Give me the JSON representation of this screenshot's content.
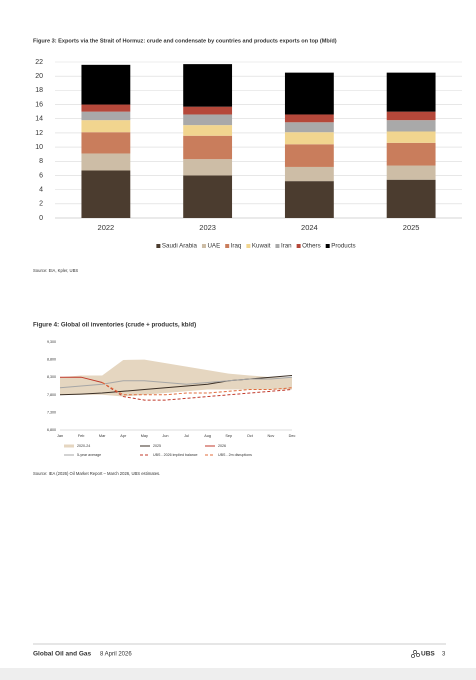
{
  "chart_data": [
    {
      "type": "bar",
      "title": "Figure 3: Exports via the Strait of Hormuz: crude and condensate by countries and products exports on top (Mb/d)",
      "categories": [
        "2022",
        "2023",
        "2024",
        "2025"
      ],
      "series": [
        {
          "name": "Saudi Arabia",
          "color": "#4b3c2f",
          "values": [
            6.7,
            6.0,
            5.2,
            5.4
          ]
        },
        {
          "name": "UAE",
          "color": "#cdbda6",
          "values": [
            2.4,
            2.3,
            2.0,
            2.0
          ]
        },
        {
          "name": "Iraq",
          "color": "#c97d5c",
          "values": [
            3.0,
            3.3,
            3.2,
            3.2
          ]
        },
        {
          "name": "Kuwait",
          "color": "#f1d58f",
          "values": [
            1.7,
            1.5,
            1.7,
            1.6
          ]
        },
        {
          "name": "Iran",
          "color": "#a9a9a9",
          "values": [
            1.2,
            1.5,
            1.4,
            1.6
          ]
        },
        {
          "name": "Others",
          "color": "#b5483a",
          "values": [
            1.0,
            1.1,
            1.1,
            1.2
          ]
        },
        {
          "name": "Products",
          "color": "#000000",
          "values": [
            5.6,
            6.0,
            5.9,
            5.5
          ]
        }
      ],
      "stacked": true,
      "ylim": [
        0,
        22
      ],
      "yticks": [
        0,
        2,
        4,
        6,
        8,
        10,
        12,
        14,
        16,
        18,
        20,
        22
      ],
      "grid": true,
      "legend": "bottom",
      "source": "Source: EIA, Kpler, UBS"
    },
    {
      "type": "line",
      "title": "Figure 4: Global oil inventories (crude + products, kb/d)",
      "categories": [
        "Jan",
        "Feb",
        "Mar",
        "Apr",
        "May",
        "Jun",
        "Jul",
        "Aug",
        "Sep",
        "Oct",
        "Nov",
        "Dec"
      ],
      "series": [
        {
          "name": "2020-24",
          "color": "#e5d6c0",
          "area": true,
          "low": [
            7800,
            7800,
            7800,
            7750,
            7800,
            7850,
            7900,
            7950,
            7950,
            7950,
            7950,
            7950
          ],
          "values": [
            8300,
            8350,
            8350,
            8790,
            8800,
            8700,
            8600,
            8500,
            8400,
            8350,
            8300,
            8300
          ]
        },
        {
          "name": "2025",
          "color": "#3b2f25",
          "values": [
            7800,
            7820,
            7850,
            7900,
            7950,
            8000,
            8050,
            8100,
            8200,
            8250,
            8300,
            8350
          ]
        },
        {
          "name": "2026",
          "color": "#c0392b",
          "values": [
            8300,
            8300,
            8150,
            null,
            null,
            null,
            null,
            null,
            null,
            null,
            null,
            null
          ]
        },
        {
          "name": "5-year average",
          "color": "#a6a6a6",
          "values": [
            8000,
            8050,
            8100,
            8200,
            8200,
            8150,
            8100,
            8150,
            8200,
            8250,
            8250,
            8300
          ]
        },
        {
          "name": "UBS - 2026 implied balance",
          "color": "#c0392b",
          "dashed": true,
          "values": [
            null,
            null,
            8150,
            7750,
            7650,
            7650,
            7700,
            7750,
            7800,
            7850,
            7900,
            7950
          ]
        },
        {
          "name": "UBS - 2m disruptions",
          "color": "#e06b3b",
          "dashed": true,
          "values": [
            null,
            null,
            8150,
            7800,
            7800,
            7800,
            7850,
            7850,
            7900,
            7950,
            7950,
            8000
          ]
        }
      ],
      "ylim": [
        6800,
        9300
      ],
      "yticks": [
        {
          "value": 6800,
          "label": "6,800"
        },
        {
          "value": 7300,
          "label": "7,300"
        },
        {
          "value": 7800,
          "label": "7,800"
        },
        {
          "value": 8300,
          "label": "8,300"
        },
        {
          "value": 8800,
          "label": "8,800"
        },
        {
          "value": 9300,
          "label": "9,300"
        }
      ],
      "grid": false,
      "legend": "bottom",
      "source": "Source: IEA (2026) Oil Market Report – March 2026, UBS estimates."
    }
  ],
  "footer": {
    "title": "Global Oil and Gas",
    "date": "8 April 2026",
    "brand": "UBS",
    "page": "3"
  }
}
